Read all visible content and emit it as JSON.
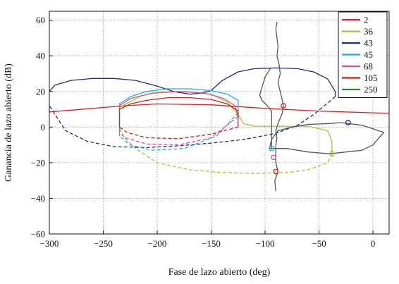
{
  "chart_data": {
    "type": "line",
    "title": "",
    "xlabel": "Fase de lazo abierto (deg)",
    "ylabel": "Ganancia de lazo abierto (dB)",
    "xlim": [
      -300,
      15
    ],
    "ylim": [
      -60,
      65
    ],
    "xticks": [
      -300,
      -250,
      -200,
      -150,
      -100,
      -50,
      0
    ],
    "xtick_labels": [
      "−300",
      "−250",
      "−200",
      "−150",
      "−100",
      "−50",
      "0"
    ],
    "yticks": [
      -60,
      -40,
      -20,
      0,
      20,
      40,
      60
    ],
    "ytick_labels": [
      "−60",
      "−40",
      "−20",
      "0",
      "20",
      "40",
      "60"
    ],
    "grid": "dotted",
    "legend_position": "top-right",
    "legend": [
      "2",
      "36",
      "43",
      "45",
      "68",
      "105",
      "250"
    ],
    "colors": {
      "red": "#e02020",
      "green": "#99cc33",
      "navy": "#1f2a80",
      "cyan": "#1ab0e0",
      "pink": "#e0508a",
      "darkred": "#c81e1e",
      "darkgreen": "#2a8a30",
      "gray": "#555555"
    },
    "series": [
      {
        "name": "2",
        "color": "#e02020",
        "style": "solid",
        "points": [
          [
            -300,
            8.5
          ],
          [
            -260,
            10.5
          ],
          [
            -230,
            12
          ],
          [
            -200,
            13
          ],
          [
            -150,
            12.5
          ],
          [
            -100,
            10.5
          ],
          [
            -50,
            9
          ],
          [
            0,
            8
          ],
          [
            15,
            7.8
          ]
        ]
      },
      {
        "name": "36",
        "color": "#99cc33",
        "style": "solid",
        "points": [
          [
            -235,
            11
          ],
          [
            -215,
            17.5
          ],
          [
            -200,
            19.5
          ],
          [
            -175,
            20
          ],
          [
            -150,
            18.5
          ],
          [
            -135,
            14
          ],
          [
            -125,
            7
          ],
          [
            -120,
            2
          ],
          [
            -110,
            0.5
          ],
          [
            -60,
            0.5
          ],
          [
            -42,
            -2
          ],
          [
            -38,
            -8
          ],
          [
            -38,
            -15
          ]
        ]
      },
      {
        "name": "36",
        "color": "#99cc33",
        "style": "dashed",
        "points": [
          [
            -38,
            -15
          ],
          [
            -42,
            -20
          ],
          [
            -60,
            -24
          ],
          [
            -80,
            -25.5
          ],
          [
            -110,
            -26
          ],
          [
            -140,
            -25.5
          ],
          [
            -170,
            -24
          ],
          [
            -200,
            -20
          ],
          [
            -220,
            -12
          ],
          [
            -232,
            -5
          ],
          [
            -235,
            0
          ]
        ]
      },
      {
        "name": "43",
        "color": "#1f2a80",
        "style": "solid",
        "points": [
          [
            -300,
            20
          ],
          [
            -295,
            23.5
          ],
          [
            -280,
            26.2
          ],
          [
            -260,
            27.3
          ],
          [
            -240,
            27.3
          ],
          [
            -220,
            26.2
          ],
          [
            -200,
            23
          ],
          [
            -185,
            20
          ],
          [
            -170,
            18.5
          ],
          [
            -160,
            19
          ],
          [
            -150,
            20.5
          ],
          [
            -140,
            26
          ],
          [
            -125,
            31
          ],
          [
            -110,
            32.8
          ],
          [
            -90,
            33.2
          ],
          [
            -70,
            32.8
          ],
          [
            -55,
            31
          ],
          [
            -42,
            27
          ],
          [
            -35,
            20
          ],
          [
            -35,
            17
          ]
        ]
      },
      {
        "name": "43",
        "color": "#1f2a80",
        "style": "dashed",
        "points": [
          [
            -35,
            17
          ],
          [
            -55,
            7
          ],
          [
            -70,
            1
          ],
          [
            -90,
            -3.5
          ],
          [
            -120,
            -7
          ],
          [
            -150,
            -9
          ],
          [
            -180,
            -10.5
          ],
          [
            -210,
            -11.5
          ],
          [
            -240,
            -11
          ],
          [
            -265,
            -8
          ],
          [
            -285,
            -2
          ],
          [
            -300,
            12
          ]
        ]
      },
      {
        "name": "45",
        "color": "#1ab0e0",
        "style": "solid",
        "points": [
          [
            -235,
            -5
          ],
          [
            -235,
            13
          ],
          [
            -225,
            17
          ],
          [
            -210,
            20
          ],
          [
            -190,
            21.5
          ],
          [
            -170,
            21.5
          ],
          [
            -150,
            20.5
          ],
          [
            -135,
            18.5
          ],
          [
            -125,
            15
          ],
          [
            -125,
            8
          ]
        ]
      },
      {
        "name": "45",
        "color": "#1ab0e0",
        "style": "dashed",
        "points": [
          [
            -125,
            8
          ],
          [
            -145,
            -5
          ],
          [
            -175,
            -12
          ],
          [
            -205,
            -13
          ],
          [
            -225,
            -10
          ],
          [
            -235,
            -5
          ]
        ]
      },
      {
        "name": "68",
        "color": "#e0508a",
        "style": "solid",
        "points": [
          [
            -235,
            12
          ],
          [
            -225,
            16
          ],
          [
            -205,
            19
          ],
          [
            -180,
            20
          ],
          [
            -155,
            19
          ],
          [
            -138,
            16
          ],
          [
            -128,
            12
          ],
          [
            -125,
            6
          ]
        ]
      },
      {
        "name": "68",
        "color": "#e0508a",
        "style": "dashed",
        "points": [
          [
            -125,
            6
          ],
          [
            -150,
            -6
          ],
          [
            -180,
            -10
          ],
          [
            -210,
            -9.5
          ],
          [
            -230,
            -6
          ],
          [
            -235,
            -2
          ]
        ]
      },
      {
        "name": "105",
        "color": "#c81e1e",
        "style": "solid",
        "points": [
          [
            -235,
            0
          ],
          [
            -235,
            10
          ],
          [
            -225,
            13
          ],
          [
            -210,
            15
          ],
          [
            -190,
            16.5
          ],
          [
            -170,
            16.5
          ],
          [
            -150,
            15.5
          ],
          [
            -135,
            13
          ],
          [
            -125,
            9
          ],
          [
            -125,
            0
          ]
        ]
      },
      {
        "name": "105",
        "color": "#c81e1e",
        "style": "dashed",
        "points": [
          [
            -125,
            0
          ],
          [
            -150,
            -4
          ],
          [
            -180,
            -6.5
          ],
          [
            -210,
            -6
          ],
          [
            -228,
            -3
          ],
          [
            -235,
            0
          ]
        ]
      },
      {
        "name": "",
        "color": "#555555",
        "style": "solid",
        "points": [
          [
            -89,
            59
          ],
          [
            -90,
            55
          ],
          [
            -89,
            50
          ],
          [
            -88,
            45
          ],
          [
            -89,
            40
          ],
          [
            -87,
            35
          ],
          [
            -86,
            30
          ],
          [
            -88,
            25
          ],
          [
            -86,
            20
          ],
          [
            -84,
            15
          ],
          [
            -83,
            12
          ],
          [
            -84,
            8
          ],
          [
            -86,
            5
          ],
          [
            -88,
            2
          ],
          [
            -90,
            -2
          ],
          [
            -89,
            -6
          ],
          [
            -90,
            -10
          ],
          [
            -90,
            -15
          ],
          [
            -90,
            -20
          ],
          [
            -88,
            -25
          ],
          [
            -91,
            -30
          ],
          [
            -90,
            -36
          ]
        ]
      },
      {
        "name": "",
        "color": "#555555",
        "style": "solid",
        "points": [
          [
            -96,
            -12
          ],
          [
            -94,
            -7
          ],
          [
            -88,
            -2
          ],
          [
            -75,
            0
          ],
          [
            -60,
            1.5
          ],
          [
            -40,
            2
          ],
          [
            -30,
            2.5
          ],
          [
            -10,
            1
          ],
          [
            10,
            -3
          ],
          [
            0,
            -10
          ],
          [
            -10,
            -13
          ],
          [
            -40,
            -15
          ],
          [
            -60,
            -14
          ],
          [
            -80,
            -12
          ],
          [
            -96,
            -12
          ]
        ]
      },
      {
        "name": "",
        "color": "#555555",
        "style": "solid",
        "points": [
          [
            -95,
            33
          ],
          [
            -100,
            28
          ],
          [
            -103,
            22
          ],
          [
            -105,
            18
          ],
          [
            -103,
            15
          ],
          [
            -98,
            12
          ],
          [
            -94,
            9
          ],
          [
            -94,
            2
          ],
          [
            -94,
            -5
          ],
          [
            -94,
            -12
          ]
        ]
      }
    ],
    "markers": [
      {
        "series": "2",
        "color": "#e02020",
        "x": -83,
        "y": 12
      },
      {
        "series": "36",
        "color": "#99cc33",
        "x": -38,
        "y": -15
      },
      {
        "series": "43",
        "color": "#1f2a80",
        "x": -23,
        "y": 2.5
      },
      {
        "series": "45",
        "color": "#1ab0e0",
        "x": -94,
        "y": -12
      },
      {
        "series": "68",
        "color": "#e0508a",
        "x": -92,
        "y": -17
      },
      {
        "series": "105",
        "color": "#c81e1e",
        "x": -90,
        "y": -25
      }
    ],
    "legend_colors": [
      "#e02020",
      "#99cc33",
      "#1f2a80",
      "#1ab0e0",
      "#e0508a",
      "#c81e1e",
      "#2a8a30"
    ]
  }
}
